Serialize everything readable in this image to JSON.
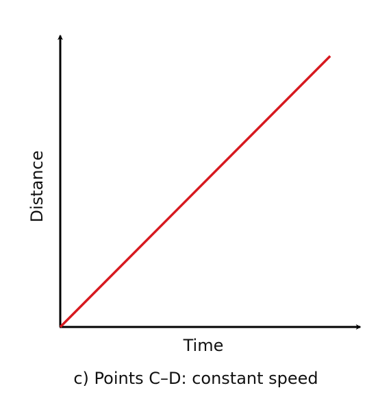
{
  "chart_data": {
    "type": "line",
    "caption": "c) Points C–D: constant speed",
    "xlabel": "Time",
    "ylabel": "Distance",
    "x": [
      0,
      0.9
    ],
    "series": [
      {
        "color": "#d7191f",
        "values": [
          0,
          0.93
        ]
      }
    ],
    "xlim": [
      0,
      1
    ],
    "ylim": [
      0,
      1
    ]
  }
}
